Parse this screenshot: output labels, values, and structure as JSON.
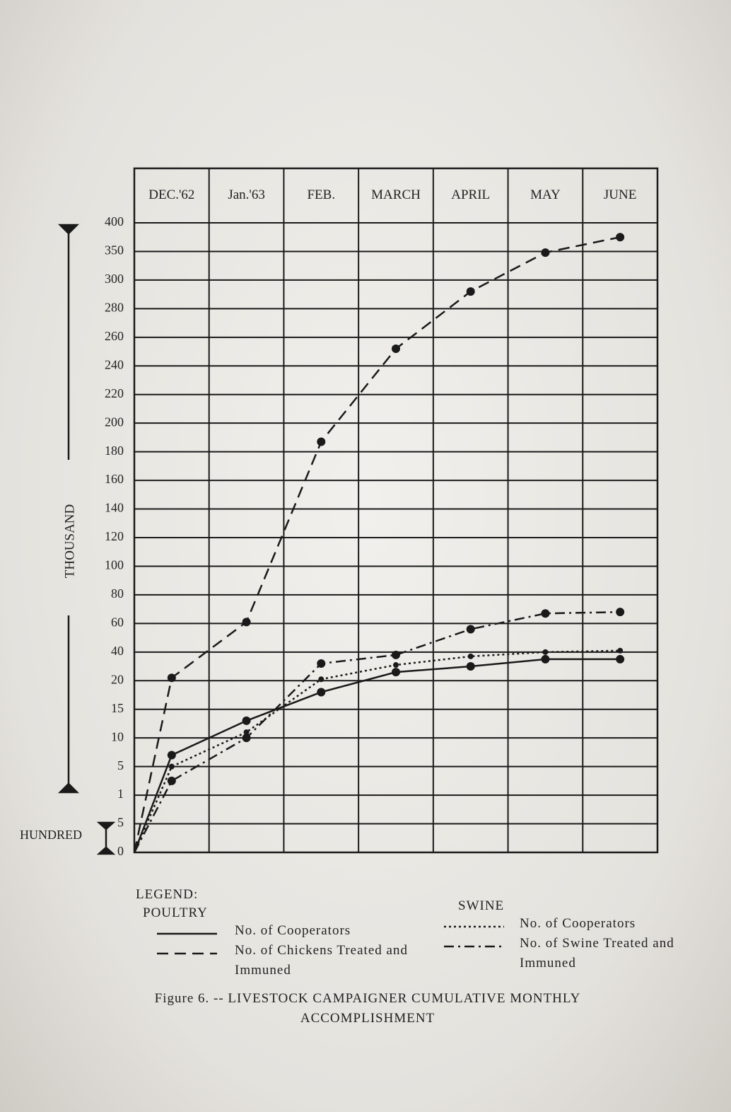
{
  "chart_data": {
    "type": "line",
    "title": "Figure 6. -- LIVESTOCK CAMPAIGNER CUMULATIVE MONTHLY ACCOMPLISHMENT",
    "categories": [
      null,
      "DEC.'62",
      "Jan.'63",
      "FEB.",
      "MARCH",
      "APRIL",
      "MAY",
      "JUNE"
    ],
    "y_unit_labels": [
      "THOUSAND",
      "HUNDRED"
    ],
    "legend_title": "LEGEND:",
    "series": [
      {
        "name": "No. of Cooperators",
        "group": "POULTRY",
        "dash": "solid",
        "color": "#1a1a1a",
        "values": [
          0,
          7,
          13,
          18,
          26,
          30,
          35,
          35
        ]
      },
      {
        "name": "No. of Chickens Treated and Immuned",
        "group": "POULTRY",
        "dash": "dashed",
        "color": "#1a1a1a",
        "values": [
          0,
          22,
          61,
          187,
          252,
          292,
          348,
          375
        ]
      },
      {
        "name": "No. of Cooperators",
        "group": "SWINE",
        "dash": "dotted",
        "color": "#1a1a1a",
        "values": [
          0,
          5,
          11,
          21,
          31,
          37,
          40,
          41
        ]
      },
      {
        "name": "No. of Swine Treated and Immuned",
        "group": "SWINE",
        "dash": "dashdot",
        "color": "#1a1a1a",
        "values": [
          0,
          3,
          10,
          32,
          38,
          56,
          67,
          68
        ]
      }
    ],
    "ylim": [
      0,
      400
    ],
    "yticks": [
      0,
      {
        "value": 0.5,
        "label": "5"
      },
      1,
      5,
      10,
      15,
      20,
      40,
      60,
      80,
      100,
      120,
      140,
      160,
      180,
      200,
      220,
      240,
      260,
      280,
      300,
      350,
      400
    ],
    "grid": true
  }
}
